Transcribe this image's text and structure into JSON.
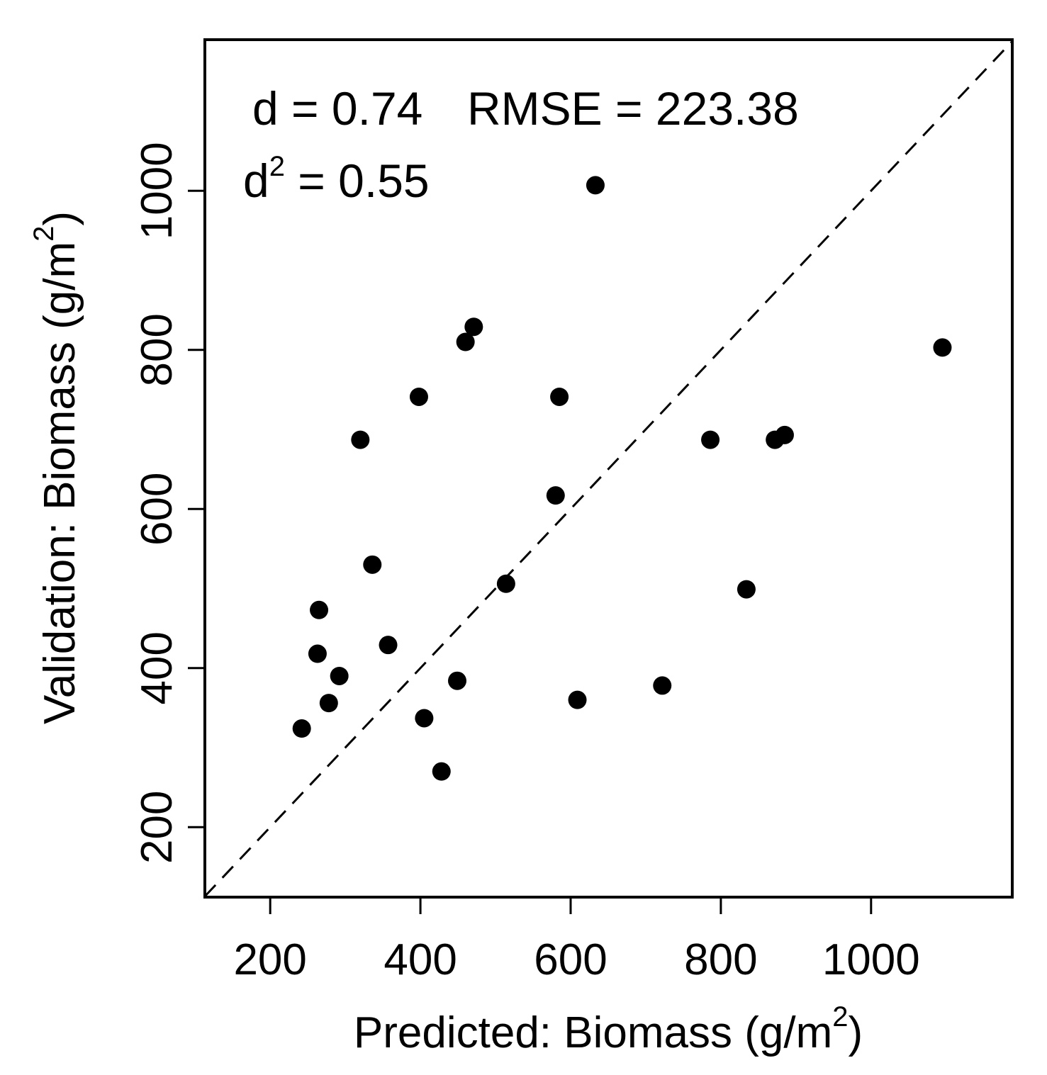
{
  "chart_data": {
    "type": "scatter",
    "xlabel": "Predicted: Biomass (g/m",
    "xlabel_sup": "2",
    "xlabel_end": ")",
    "ylabel": "Validation: Biomass (g/m",
    "ylabel_sup": "2",
    "ylabel_end": ")",
    "xlim": [
      113,
      1188
    ],
    "ylim": [
      112,
      1190
    ],
    "xticks": [
      200,
      400,
      600,
      800,
      1000
    ],
    "yticks": [
      200,
      400,
      600,
      800,
      1000
    ],
    "xtick_labels": [
      "200",
      "400",
      "600",
      "800",
      "1000"
    ],
    "ytick_labels": [
      "200",
      "400",
      "600",
      "800",
      "1000"
    ],
    "reference_line": "1:1 dashed",
    "stats": {
      "d_label": "d = 0.74",
      "rmse_label": "RMSE = 223.38",
      "d2_prefix": "d",
      "d2_sup": "2",
      "d2_suffix": " = 0.55"
    },
    "points": [
      {
        "x": 633,
        "y": 1007
      },
      {
        "x": 471,
        "y": 829
      },
      {
        "x": 460,
        "y": 810
      },
      {
        "x": 1095,
        "y": 803
      },
      {
        "x": 398,
        "y": 741
      },
      {
        "x": 585,
        "y": 741
      },
      {
        "x": 320,
        "y": 687
      },
      {
        "x": 786,
        "y": 687
      },
      {
        "x": 872,
        "y": 687
      },
      {
        "x": 885,
        "y": 693
      },
      {
        "x": 580,
        "y": 617
      },
      {
        "x": 336,
        "y": 530
      },
      {
        "x": 514,
        "y": 506
      },
      {
        "x": 834,
        "y": 499
      },
      {
        "x": 265,
        "y": 473
      },
      {
        "x": 263,
        "y": 418
      },
      {
        "x": 357,
        "y": 429
      },
      {
        "x": 292,
        "y": 390
      },
      {
        "x": 449,
        "y": 384
      },
      {
        "x": 278,
        "y": 356
      },
      {
        "x": 722,
        "y": 378
      },
      {
        "x": 609,
        "y": 360
      },
      {
        "x": 242,
        "y": 324
      },
      {
        "x": 405,
        "y": 337
      },
      {
        "x": 428,
        "y": 270
      }
    ]
  }
}
